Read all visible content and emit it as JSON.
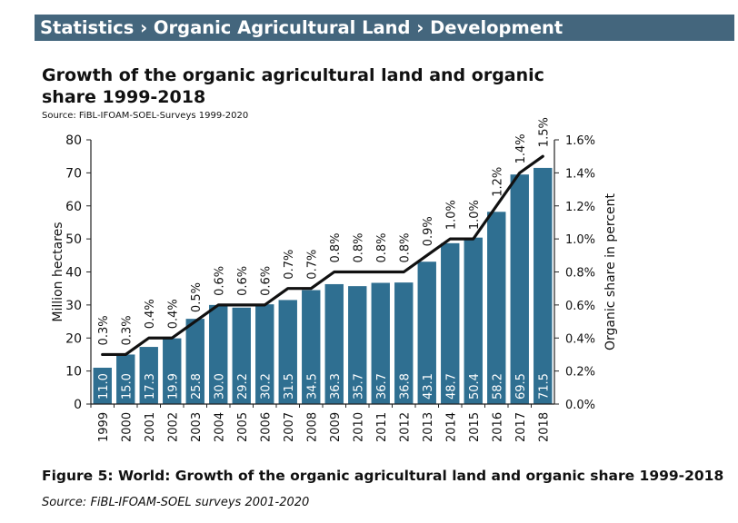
{
  "header": {
    "title": "Statistics › Organic Agricultural Land › Development"
  },
  "chart_data": {
    "type": "bar",
    "title": "Growth of the organic agricultural land and organic share 1999-2018",
    "source": "Source: FiBL-IFOAM-SOEL-Surveys 1999-2020",
    "xlabel": "",
    "ylabel": "Million hectares",
    "y2label": "Organic share in percent",
    "ylim": [
      0,
      80
    ],
    "y2lim": [
      0,
      1.6
    ],
    "yticks": [
      "0",
      "10",
      "20",
      "30",
      "40",
      "50",
      "60",
      "70",
      "80"
    ],
    "y2ticks": [
      "0.0%",
      "0.2%",
      "0.4%",
      "0.6%",
      "0.8%",
      "1.0%",
      "1.2%",
      "1.4%",
      "1.6%"
    ],
    "categories": [
      "1999",
      "2000",
      "2001",
      "2002",
      "2003",
      "2004",
      "2005",
      "2006",
      "2007",
      "2008",
      "2009",
      "2010",
      "2011",
      "2012",
      "2013",
      "2014",
      "2015",
      "2016",
      "2017",
      "2018"
    ],
    "series": [
      {
        "name": "Organic agricultural land (million hectares)",
        "type": "bar",
        "values": [
          11.0,
          15.0,
          17.3,
          19.9,
          25.8,
          30.0,
          29.2,
          30.2,
          31.5,
          34.5,
          36.3,
          35.7,
          36.7,
          36.8,
          43.1,
          48.7,
          50.4,
          58.2,
          69.5,
          71.5
        ],
        "labels": [
          "11.0",
          "15.0",
          "17.3",
          "19.9",
          "25.8",
          "30.0",
          "29.2",
          "30.2",
          "31.5",
          "34.5",
          "36.3",
          "35.7",
          "36.7",
          "36.8",
          "43.1",
          "48.7",
          "50.4",
          "58.2",
          "69.5",
          "71.5"
        ],
        "color": "#2f6f91"
      },
      {
        "name": "Organic share (percent)",
        "type": "line",
        "values": [
          0.3,
          0.3,
          0.4,
          0.4,
          0.5,
          0.6,
          0.6,
          0.6,
          0.7,
          0.7,
          0.8,
          0.8,
          0.8,
          0.8,
          0.9,
          1.0,
          1.0,
          1.2,
          1.4,
          1.5
        ],
        "labels": [
          "0.3%",
          "0.3%",
          "0.4%",
          "0.4%",
          "0.5%",
          "0.6%",
          "0.6%",
          "0.6%",
          "0.7%",
          "0.7%",
          "0.8%",
          "0.8%",
          "0.8%",
          "0.8%",
          "0.9%",
          "1.0%",
          "1.0%",
          "1.2%",
          "1.4%",
          "1.5%"
        ],
        "color": "#111111"
      }
    ]
  },
  "caption": {
    "figure": "Figure 5: World: Growth of the organic agricultural land and organic share 1999-2018",
    "source": "Source: FiBL-IFOAM-SOEL surveys 2001-2020"
  }
}
